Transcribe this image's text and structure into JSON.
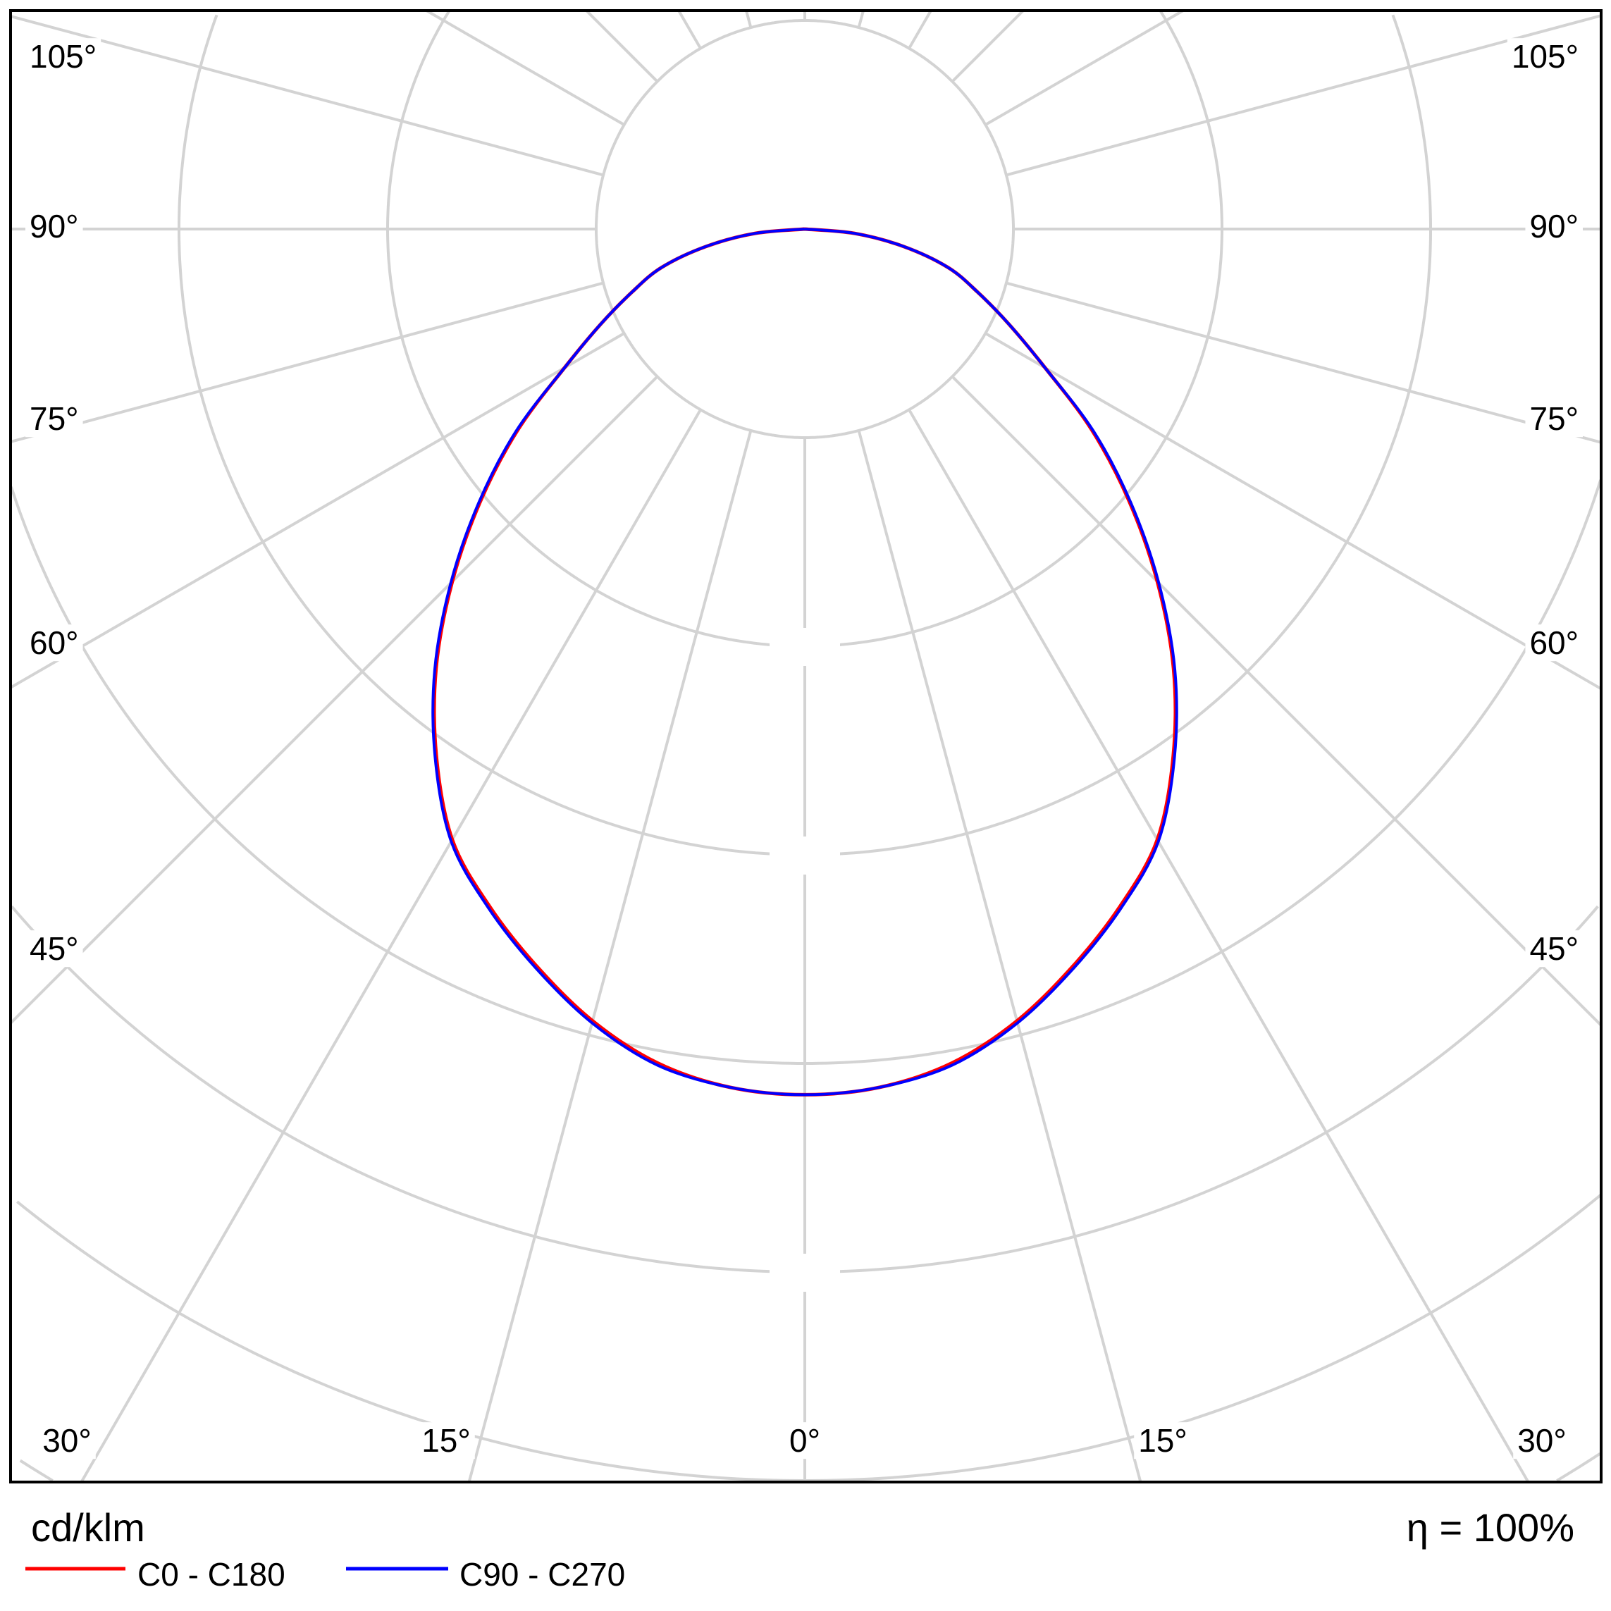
{
  "chart_data": {
    "type": "polar-line",
    "unit_label": "cd/klm",
    "efficiency_label": "η = 100%",
    "angle_unit": "degrees from nadir",
    "radial_unit_note": "radial tick labels not shown; values in grid-ring units",
    "grid": true,
    "grid_color": "#d3d3d3",
    "angle_labels": {
      "left": [
        "105°",
        "90°",
        "75°",
        "60°",
        "45°"
      ],
      "right": [
        "105°",
        "90°",
        "75°",
        "60°",
        "45°"
      ],
      "bottom": [
        "30°",
        "15°",
        "0°",
        "15°",
        "30°"
      ]
    },
    "angles": [
      0,
      5,
      10,
      15,
      20,
      25,
      30,
      35,
      40,
      45,
      50,
      55,
      60,
      65,
      70,
      75,
      80,
      85,
      90
    ],
    "series": [
      {
        "name": "C0 - C180",
        "color": "#ff0000",
        "values": [
          4.15,
          4.13,
          4.06,
          3.93,
          3.76,
          3.58,
          3.38,
          3.08,
          2.75,
          2.39,
          2.03,
          1.68,
          1.33,
          1.08,
          0.88,
          0.71,
          0.48,
          0.24,
          0.0
        ]
      },
      {
        "name": "C90 - C270",
        "color": "#0000ff",
        "values": [
          4.15,
          4.13,
          4.07,
          3.94,
          3.77,
          3.59,
          3.39,
          3.09,
          2.76,
          2.4,
          2.04,
          1.69,
          1.33,
          1.08,
          0.88,
          0.71,
          0.48,
          0.24,
          0.0
        ]
      }
    ],
    "legend_position": "bottom-left"
  }
}
